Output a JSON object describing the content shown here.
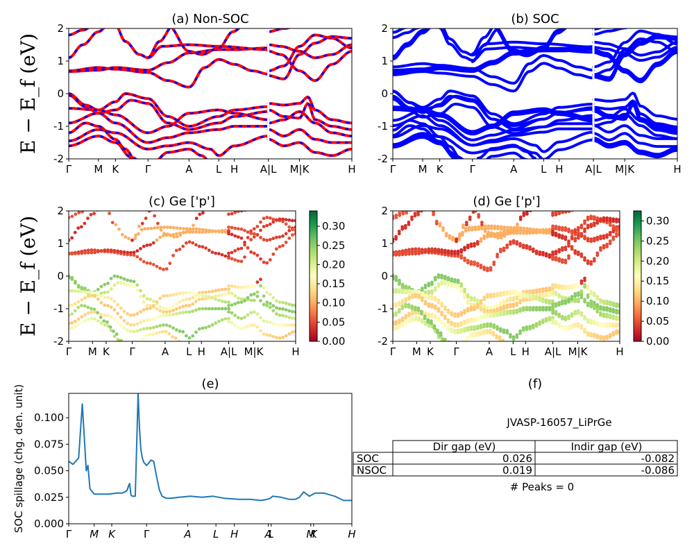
{
  "chart_data": [
    {
      "id": "a",
      "type": "line",
      "title": "(a) Non-SOC",
      "ylabel": "E − E_f (eV)",
      "ylim": [
        -2,
        2
      ],
      "yticks": [
        -2,
        -1,
        0,
        1,
        2
      ],
      "xticks": [
        "Γ",
        "M",
        "K",
        "Γ",
        "A",
        "L",
        "H",
        "A|L",
        "M|K",
        "H"
      ],
      "series": [
        {
          "name": "",
          "color": "#ff0000"
        },
        {
          "name": "",
          "color": "#0000ff"
        }
      ]
    },
    {
      "id": "b",
      "type": "line",
      "title": "(b) SOC",
      "ylim": [
        -2,
        2
      ],
      "yticks": [
        -2,
        -1,
        0,
        1,
        2
      ],
      "xticks": [
        "Γ",
        "M",
        "K",
        "Γ",
        "A",
        "L",
        "H",
        "A|L",
        "M|K",
        "H"
      ],
      "series": [
        {
          "name": "",
          "color": "#0000ff"
        }
      ]
    },
    {
      "id": "c",
      "type": "scatter",
      "title": "(c)  Ge ['p']",
      "ylabel": "E − E_f (eV)",
      "ylim": [
        -2,
        2
      ],
      "yticks": [
        -2,
        -1,
        0,
        1,
        2
      ],
      "xticks": [
        "Γ",
        "M",
        "K",
        "Γ",
        "A",
        "L",
        "H",
        "A|L",
        "M|K",
        "H"
      ],
      "colorbar": {
        "ticks": [
          "0.00",
          "0.05",
          "0.10",
          "0.15",
          "0.20",
          "0.25",
          "0.30"
        ],
        "range": [
          0,
          0.34
        ]
      }
    },
    {
      "id": "d",
      "type": "scatter",
      "title": "(d) Ge ['p']",
      "ylim": [
        -2,
        2
      ],
      "yticks": [
        -2,
        -1,
        0,
        1,
        2
      ],
      "xticks": [
        "Γ",
        "M",
        "K",
        "Γ",
        "A",
        "L",
        "H",
        "A|L",
        "M|K",
        "H"
      ],
      "colorbar": {
        "ticks": [
          "0.00",
          "0.05",
          "0.10",
          "0.15",
          "0.20",
          "0.25",
          "0.30"
        ],
        "range": [
          0,
          0.325
        ]
      }
    },
    {
      "id": "e",
      "type": "line",
      "title": "(e)",
      "ylabel": "SOC spillage (chg. den. unit)",
      "ylim": [
        0,
        0.123
      ],
      "yticks": [
        "0.000",
        "0.025",
        "0.050",
        "0.075",
        "0.100"
      ],
      "xticks": [
        "Γ",
        "M",
        "K",
        "Γ",
        "A",
        "L",
        "H",
        "A",
        "L",
        "M",
        "K",
        "H"
      ],
      "series": [
        {
          "name": "",
          "color": "#1f77b4",
          "x": [
            0,
            0.015,
            0.035,
            0.048,
            0.055,
            0.062,
            0.068,
            0.075,
            0.09,
            0.11,
            0.14,
            0.17,
            0.19,
            0.205,
            0.215,
            0.22,
            0.225,
            0.235,
            0.245,
            0.25,
            0.255,
            0.26,
            0.265,
            0.275,
            0.285,
            0.29,
            0.3,
            0.31,
            0.32,
            0.33,
            0.345,
            0.36,
            0.39,
            0.43,
            0.47,
            0.51,
            0.55,
            0.6,
            0.64,
            0.68,
            0.7,
            0.712,
            0.72,
            0.75,
            0.78,
            0.8,
            0.815,
            0.83,
            0.85,
            0.87,
            0.9,
            0.94,
            0.97,
            1.0
          ],
          "y": [
            0.059,
            0.056,
            0.062,
            0.113,
            0.082,
            0.05,
            0.055,
            0.033,
            0.028,
            0.028,
            0.028,
            0.029,
            0.029,
            0.031,
            0.038,
            0.027,
            0.026,
            0.026,
            0.123,
            0.09,
            0.07,
            0.062,
            0.058,
            0.055,
            0.058,
            0.06,
            0.059,
            0.045,
            0.032,
            0.026,
            0.024,
            0.024,
            0.025,
            0.026,
            0.025,
            0.026,
            0.024,
            0.023,
            0.023,
            0.022,
            0.023,
            0.024,
            0.026,
            0.025,
            0.023,
            0.023,
            0.025,
            0.03,
            0.026,
            0.029,
            0.029,
            0.026,
            0.022,
            0.022
          ]
        }
      ]
    }
  ],
  "panel_f": {
    "title": "(f)",
    "material": "JVASP-16057_LiPrGe",
    "table": {
      "headers": [
        "Dir gap (eV)",
        "Indir gap (eV)"
      ],
      "rows": [
        {
          "label": "SOC",
          "values": [
            "0.026",
            "-0.082"
          ]
        },
        {
          "label": "NSOC",
          "values": [
            "0.019",
            "-0.086"
          ]
        }
      ]
    },
    "peaks": "# Peaks = 0"
  }
}
